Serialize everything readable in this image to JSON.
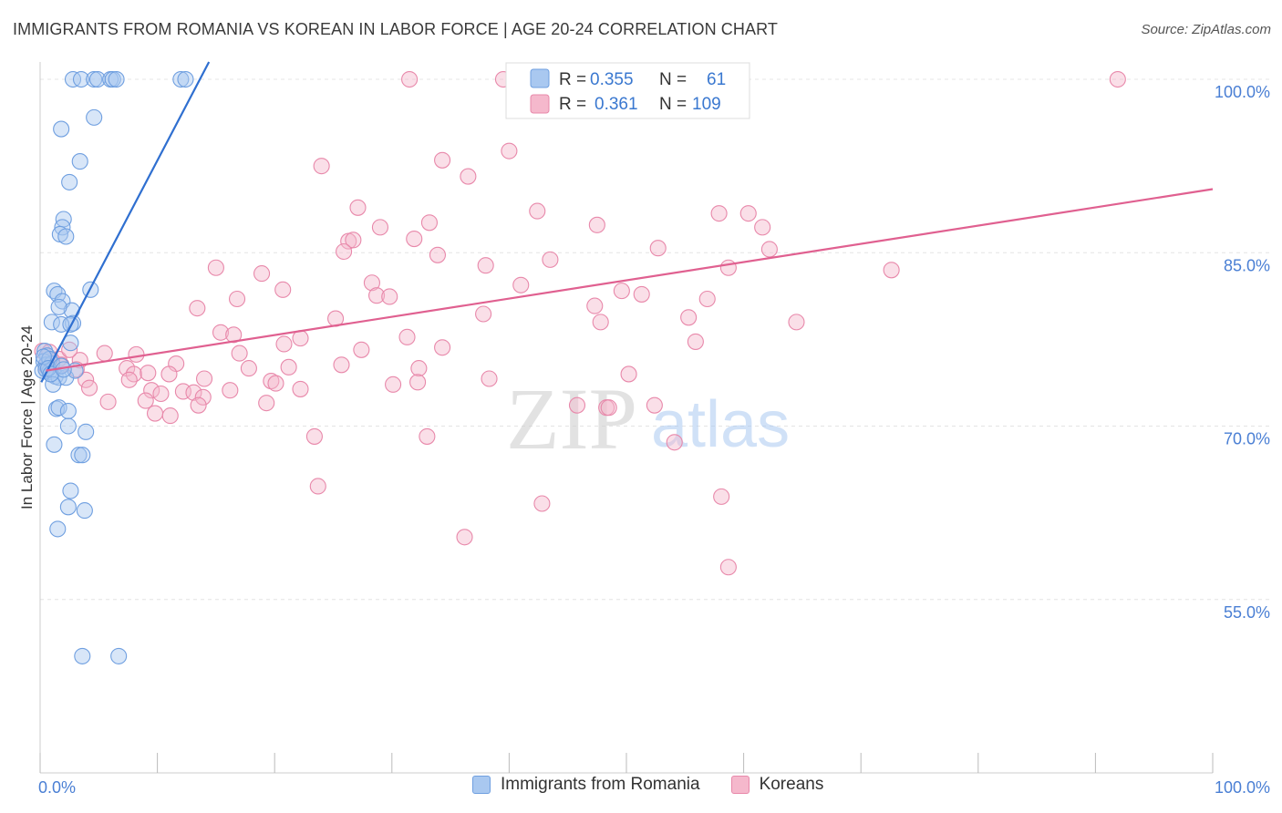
{
  "title": "IMMIGRANTS FROM ROMANIA VS KOREAN IN LABOR FORCE | AGE 20-24 CORRELATION CHART",
  "source": "Source: ZipAtlas.com",
  "watermark": {
    "zip": "ZIP",
    "atlas": "atlas"
  },
  "colors": {
    "blue_fill": "#a9c8f0",
    "blue_stroke": "#6f9fe0",
    "blue_line": "#2f6fd0",
    "pink_fill": "#f5b8cc",
    "pink_stroke": "#e888aa",
    "pink_line": "#e06090",
    "accent_text": "#4a7fd4"
  },
  "legend_box": {
    "rows": [
      {
        "r_label": "R =",
        "r_value": "0.355",
        "n_label": "N =",
        "n_value": "61"
      },
      {
        "r_label": "R =",
        "r_value": "0.361",
        "n_label": "N =",
        "n_value": "109"
      }
    ]
  },
  "bottom_legend": {
    "series1": "Immigrants from Romania",
    "series2": "Koreans"
  },
  "chart_data": {
    "type": "scatter",
    "title": "IMMIGRANTS FROM ROMANIA VS KOREAN IN LABOR FORCE | AGE 20-24 CORRELATION CHART",
    "xlabel": "",
    "ylabel": "In Labor Force | Age 20-24",
    "xlim": [
      0,
      100
    ],
    "ylim": [
      40,
      101.5
    ],
    "x_ticks": [
      {
        "value": 0,
        "label": "0.0%"
      },
      {
        "value": 100,
        "label": "100.0%"
      }
    ],
    "y_ticks": [
      {
        "value": 100,
        "label": "100.0%"
      },
      {
        "value": 85,
        "label": "85.0%"
      },
      {
        "value": 70,
        "label": "70.0%"
      },
      {
        "value": 55,
        "label": "55.0%"
      }
    ],
    "grid": true,
    "legend_position": "top-center",
    "series": [
      {
        "name": "Immigrants from Romania",
        "color": "blue",
        "r": 0.355,
        "n": 61,
        "trend": {
          "x0": 0.1,
          "y0": 73.8,
          "x1": 14.4,
          "y1": 101.5
        },
        "points": [
          [
            2.8,
            100
          ],
          [
            3.5,
            100
          ],
          [
            4.6,
            100
          ],
          [
            4.9,
            100
          ],
          [
            6.0,
            100
          ],
          [
            6.2,
            100
          ],
          [
            6.5,
            100
          ],
          [
            12.0,
            100
          ],
          [
            12.4,
            100
          ],
          [
            4.6,
            96.7
          ],
          [
            1.8,
            95.7
          ],
          [
            3.4,
            92.9
          ],
          [
            2.5,
            91.1
          ],
          [
            2.0,
            87.9
          ],
          [
            1.9,
            87.2
          ],
          [
            1.7,
            86.6
          ],
          [
            2.2,
            86.4
          ],
          [
            4.3,
            81.8
          ],
          [
            1.2,
            81.7
          ],
          [
            1.5,
            81.4
          ],
          [
            1.9,
            80.8
          ],
          [
            2.7,
            80.0
          ],
          [
            1.6,
            80.3
          ],
          [
            1.0,
            79.0
          ],
          [
            2.8,
            78.9
          ],
          [
            1.8,
            78.8
          ],
          [
            2.6,
            78.8
          ],
          [
            2.6,
            77.2
          ],
          [
            0.4,
            76.5
          ],
          [
            0.6,
            76.1
          ],
          [
            0.3,
            75.6
          ],
          [
            0.5,
            75.3
          ],
          [
            1.0,
            75.4
          ],
          [
            0.2,
            74.8
          ],
          [
            0.8,
            74.7
          ],
          [
            1.3,
            74.3
          ],
          [
            1.6,
            74.2
          ],
          [
            2.2,
            74.2
          ],
          [
            0.5,
            74.9
          ],
          [
            3.0,
            74.8
          ],
          [
            1.1,
            73.6
          ],
          [
            1.4,
            71.5
          ],
          [
            1.6,
            71.6
          ],
          [
            2.4,
            71.3
          ],
          [
            2.4,
            70.0
          ],
          [
            3.9,
            69.5
          ],
          [
            1.2,
            68.4
          ],
          [
            3.3,
            67.5
          ],
          [
            3.6,
            67.5
          ],
          [
            2.6,
            64.4
          ],
          [
            2.4,
            63.0
          ],
          [
            3.8,
            62.7
          ],
          [
            1.5,
            61.1
          ],
          [
            3.6,
            50.1
          ],
          [
            6.7,
            50.1
          ],
          [
            0.8,
            75.8
          ],
          [
            0.3,
            76.0
          ],
          [
            0.7,
            75.0
          ],
          [
            1.8,
            75.2
          ],
          [
            0.9,
            74.5
          ],
          [
            2.0,
            74.9
          ]
        ]
      },
      {
        "name": "Koreans",
        "color": "pink",
        "r": 0.361,
        "n": 109,
        "trend": {
          "x0": 0.5,
          "y0": 74.8,
          "x1": 100,
          "y1": 90.5
        },
        "points": [
          [
            31.5,
            100
          ],
          [
            39.5,
            100
          ],
          [
            40.4,
            100
          ],
          [
            91.9,
            100
          ],
          [
            40.0,
            93.8
          ],
          [
            34.3,
            93.0
          ],
          [
            24.0,
            92.5
          ],
          [
            36.5,
            91.6
          ],
          [
            27.1,
            88.9
          ],
          [
            42.4,
            88.6
          ],
          [
            57.9,
            88.4
          ],
          [
            60.4,
            88.4
          ],
          [
            33.2,
            87.6
          ],
          [
            47.5,
            87.4
          ],
          [
            29.0,
            87.2
          ],
          [
            61.6,
            87.2
          ],
          [
            31.9,
            86.2
          ],
          [
            26.3,
            86.0
          ],
          [
            26.7,
            86.1
          ],
          [
            52.7,
            85.4
          ],
          [
            62.2,
            85.3
          ],
          [
            25.9,
            85.1
          ],
          [
            33.9,
            84.8
          ],
          [
            43.5,
            84.4
          ],
          [
            38.0,
            83.9
          ],
          [
            58.7,
            83.7
          ],
          [
            15.0,
            83.7
          ],
          [
            18.9,
            83.2
          ],
          [
            72.6,
            83.5
          ],
          [
            28.3,
            82.4
          ],
          [
            41.0,
            82.2
          ],
          [
            20.7,
            81.8
          ],
          [
            49.6,
            81.7
          ],
          [
            51.3,
            81.4
          ],
          [
            28.7,
            81.3
          ],
          [
            29.8,
            81.2
          ],
          [
            56.9,
            81.0
          ],
          [
            16.8,
            81.0
          ],
          [
            13.4,
            80.2
          ],
          [
            47.3,
            80.4
          ],
          [
            37.8,
            79.7
          ],
          [
            55.3,
            79.4
          ],
          [
            25.2,
            79.3
          ],
          [
            47.8,
            79.0
          ],
          [
            64.5,
            79.0
          ],
          [
            15.4,
            78.1
          ],
          [
            16.5,
            77.9
          ],
          [
            22.2,
            77.6
          ],
          [
            31.3,
            77.7
          ],
          [
            55.9,
            77.3
          ],
          [
            20.8,
            77.1
          ],
          [
            34.3,
            76.8
          ],
          [
            27.4,
            76.6
          ],
          [
            17.0,
            76.3
          ],
          [
            5.5,
            76.3
          ],
          [
            0.2,
            76.5
          ],
          [
            0.8,
            76.4
          ],
          [
            1.6,
            75.8
          ],
          [
            0.5,
            75.2
          ],
          [
            1.8,
            75.3
          ],
          [
            3.4,
            75.7
          ],
          [
            7.4,
            75.0
          ],
          [
            11.6,
            75.4
          ],
          [
            17.8,
            75.0
          ],
          [
            21.2,
            75.1
          ],
          [
            25.7,
            75.3
          ],
          [
            32.3,
            75.0
          ],
          [
            8.0,
            74.5
          ],
          [
            9.2,
            74.6
          ],
          [
            11.0,
            74.5
          ],
          [
            14.0,
            74.1
          ],
          [
            7.6,
            74.0
          ],
          [
            19.7,
            73.9
          ],
          [
            3.9,
            74.0
          ],
          [
            4.2,
            73.3
          ],
          [
            9.5,
            73.1
          ],
          [
            10.3,
            72.8
          ],
          [
            12.2,
            73.0
          ],
          [
            13.1,
            72.9
          ],
          [
            13.9,
            72.5
          ],
          [
            16.2,
            73.1
          ],
          [
            20.1,
            73.7
          ],
          [
            22.2,
            73.2
          ],
          [
            30.1,
            73.6
          ],
          [
            32.2,
            73.8
          ],
          [
            38.3,
            74.1
          ],
          [
            50.2,
            74.5
          ],
          [
            5.8,
            72.1
          ],
          [
            9.0,
            72.2
          ],
          [
            9.8,
            71.1
          ],
          [
            13.5,
            71.8
          ],
          [
            19.3,
            72.0
          ],
          [
            45.8,
            71.8
          ],
          [
            48.3,
            71.6
          ],
          [
            48.5,
            71.6
          ],
          [
            52.4,
            71.8
          ],
          [
            11.1,
            70.9
          ],
          [
            23.4,
            69.1
          ],
          [
            33.0,
            69.1
          ],
          [
            54.1,
            68.6
          ],
          [
            23.7,
            64.8
          ],
          [
            42.8,
            63.3
          ],
          [
            58.1,
            63.9
          ],
          [
            36.2,
            60.4
          ],
          [
            58.7,
            57.8
          ],
          [
            8.2,
            76.2
          ],
          [
            2.5,
            76.6
          ],
          [
            1.0,
            75.7
          ],
          [
            3.1,
            74.9
          ]
        ]
      }
    ]
  }
}
